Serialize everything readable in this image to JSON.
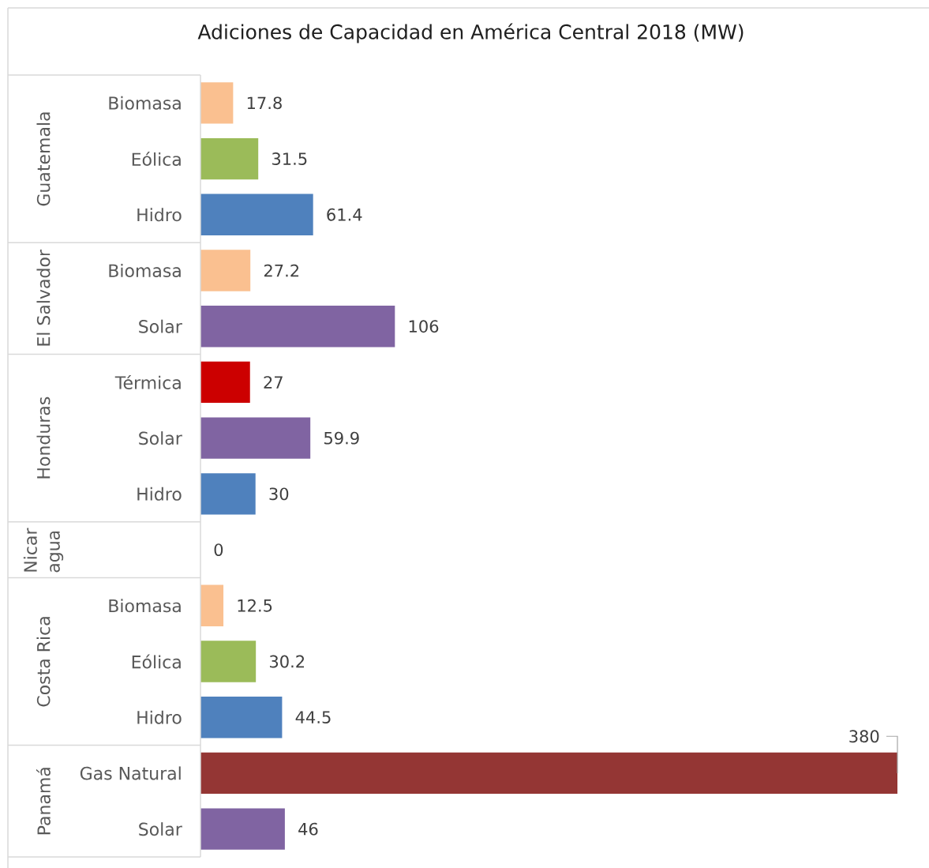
{
  "chart_data": [
    {
      "type": "bar",
      "orientation": "horizontal",
      "title": "Adiciones de Capacidad en América Central 2018 (MW)",
      "ylabel": "Guatemala",
      "categories": [
        "Biomasa",
        "Eólica",
        "Hidro"
      ],
      "values": [
        17.8,
        31.5,
        61.4
      ],
      "colors": [
        "#fac090",
        "#9bbb59",
        "#4f81bd"
      ],
      "data_labels": true,
      "tick_labels": "y"
    },
    {
      "type": "bar",
      "orientation": "horizontal",
      "ylabel": "El Salvador",
      "categories": [
        "Biomasa",
        "Solar"
      ],
      "values": [
        27.2,
        106
      ],
      "colors": [
        "#fac090",
        "#8064a2"
      ],
      "data_labels": true,
      "tick_labels": "y"
    },
    {
      "type": "bar",
      "orientation": "horizontal",
      "ylabel": "Honduras",
      "categories": [
        "Térmica",
        "Solar",
        "Hidro",
        null
      ],
      "values": [
        27,
        59.9,
        30,
        0
      ],
      "colors": [
        "#cc0000",
        "#8064a2",
        "#4f81bd",
        null
      ],
      "annotations": [
        "Nicaragua"
      ],
      "data_labels": true,
      "tick_labels": "y"
    },
    {
      "type": "bar",
      "orientation": "horizontal",
      "ylabel": "Costa Rica",
      "categories": [
        "Biomasa",
        "Eólica",
        "Hidro"
      ],
      "values": [
        12.5,
        30.2,
        44.5
      ],
      "colors": [
        "#fac090",
        "#9bbb59",
        "#4f81bd"
      ],
      "data_labels": true,
      "tick_labels": "y"
    },
    {
      "type": "bar",
      "orientation": "horizontal",
      "ylabel": "Panamá",
      "categories": [
        "Gas Natural",
        "Solar"
      ],
      "values": [
        380,
        46
      ],
      "colors": [
        "#943634",
        "#8064a2"
      ],
      "data_labels": true,
      "tick_labels": "y"
    }
  ]
}
